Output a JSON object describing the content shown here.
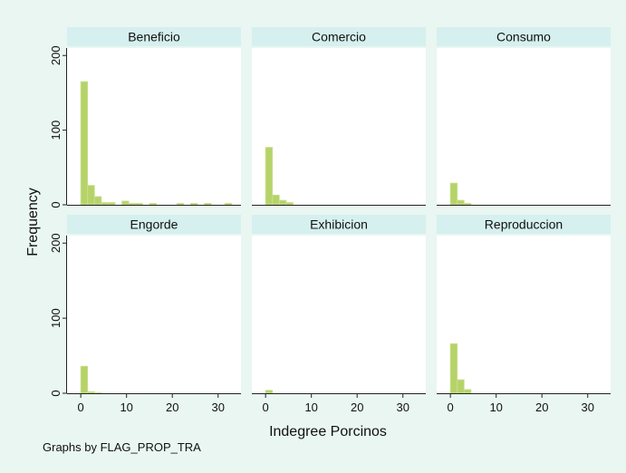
{
  "chart_data": {
    "type": "bar",
    "subtype": "histogram-by-group",
    "xlabel": "Indegree Porcinos",
    "ylabel": "Frequency",
    "note": "Graphs by FLAG_PROP_TRA",
    "xlim": [
      -3,
      35
    ],
    "xticks": [
      0,
      10,
      20,
      30
    ],
    "ylim": [
      0,
      210
    ],
    "yticks": [
      0,
      100,
      200
    ],
    "bin_width": 1.5,
    "bin_starts": [
      0,
      1.5,
      3,
      4.5,
      6,
      7.5,
      9,
      10.5,
      12,
      13.5,
      15,
      16.5,
      18,
      19.5,
      21,
      22.5,
      24,
      25.5,
      27,
      28.5,
      30,
      31.5,
      33
    ],
    "bar_color": "#b6d36a",
    "bar_edge_color": "#cbe08f",
    "panel_bg": "#ffffff",
    "strip_bg": "#d5f0ee",
    "panels": [
      {
        "name": "Beneficio",
        "counts": [
          165,
          26,
          11,
          3,
          3,
          0,
          5,
          2,
          2,
          0,
          2,
          0,
          0,
          0,
          2,
          0,
          2,
          0,
          2,
          0,
          0,
          2,
          0
        ]
      },
      {
        "name": "Comercio",
        "counts": [
          77,
          13,
          6,
          3,
          0,
          0,
          0,
          0,
          0,
          0,
          0,
          0,
          0,
          0,
          0,
          0,
          0,
          0,
          0,
          0,
          0,
          0,
          0
        ]
      },
      {
        "name": "Consumo",
        "counts": [
          29,
          6,
          2,
          0,
          0,
          0,
          0,
          0,
          0,
          0,
          0,
          0,
          0,
          0,
          0,
          0,
          0,
          0,
          0,
          0,
          0,
          0,
          0
        ]
      },
      {
        "name": "Engorde",
        "counts": [
          36,
          2,
          1,
          0,
          0,
          0,
          0,
          0,
          0,
          0,
          0,
          0,
          0,
          0,
          0,
          0,
          0,
          0,
          0,
          0,
          0,
          0,
          0
        ]
      },
      {
        "name": "Exhibicion",
        "counts": [
          4,
          0,
          0,
          0,
          0,
          0,
          0,
          0,
          0,
          0,
          0,
          0,
          0,
          0,
          0,
          0,
          0,
          0,
          0,
          0,
          0,
          0,
          0
        ]
      },
      {
        "name": "Reproduccion",
        "counts": [
          66,
          18,
          5,
          0,
          0,
          0,
          0,
          0,
          0,
          0,
          0,
          0,
          0,
          0,
          0,
          0,
          0,
          0,
          0,
          0,
          0,
          0,
          0
        ]
      }
    ]
  }
}
